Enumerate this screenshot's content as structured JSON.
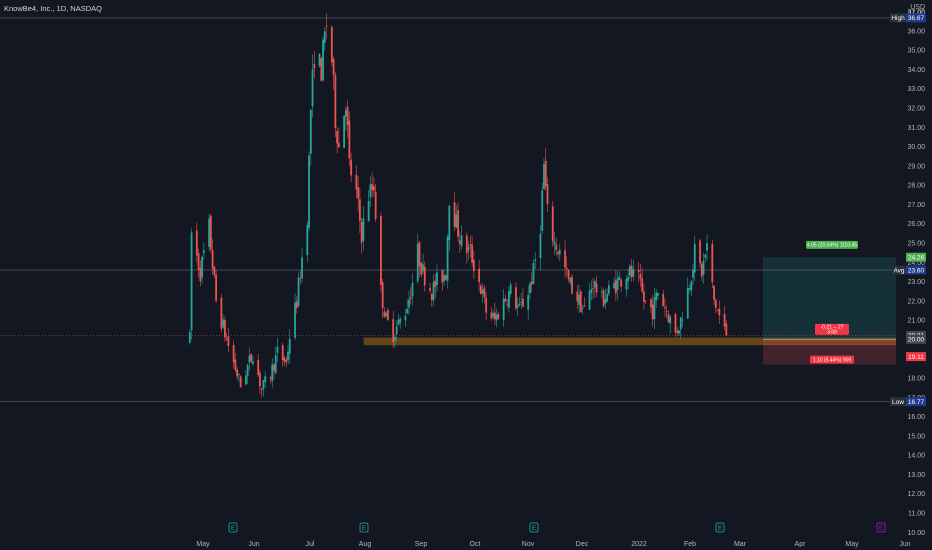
{
  "header": {
    "symbol": "KnowBe4, Inc., 1D, NASDAQ"
  },
  "axis": {
    "currency": "USD",
    "currency_sub": "37.00"
  },
  "price_tags": {
    "high": {
      "label": "High",
      "value": "36.67"
    },
    "avg": {
      "label": "Avg",
      "value": "23.60"
    },
    "low": {
      "label": "Low",
      "value": "16.77"
    },
    "target": "24.26",
    "last": "20.21",
    "entry": "20.00",
    "stop": "19.11"
  },
  "position": {
    "profit_label": "4.05 (20.04%) 1110.45",
    "risk_label": "1.10 (5.44%) 909",
    "entry_label_1": "-0.21 -- 27",
    "entry_label_2": "3.68"
  },
  "events": {
    "earnings_badge": "E",
    "dividend_badge": "E"
  },
  "chart_data": {
    "type": "candlestick",
    "title": "KnowBe4, Inc., 1D, NASDAQ",
    "y_ticks": [
      10,
      11,
      12,
      13,
      14,
      15,
      16,
      17,
      18,
      19,
      20,
      21,
      22,
      23,
      24,
      25,
      26,
      27,
      28,
      29,
      30,
      31,
      32,
      33,
      34,
      35,
      36,
      37
    ],
    "ylim": [
      9.6,
      37.6
    ],
    "x_ticks": [
      "May",
      "Jun",
      "Jul",
      "Aug",
      "Sep",
      "Oct",
      "Nov",
      "Dec",
      "2022",
      "Feb",
      "Mar",
      "Apr",
      "May",
      "Jun"
    ],
    "price_path": [
      [
        "2021-04-22",
        20.0
      ],
      [
        "2021-04-23",
        25.5
      ],
      [
        "2021-04-28",
        23.5
      ],
      [
        "2021-05-03",
        25.8
      ],
      [
        "2021-05-07",
        22.0
      ],
      [
        "2021-05-12",
        20.3
      ],
      [
        "2021-05-17",
        18.8
      ],
      [
        "2021-05-21",
        17.6
      ],
      [
        "2021-05-25",
        18.6
      ],
      [
        "2021-05-28",
        19.3
      ],
      [
        "2021-06-02",
        17.4
      ],
      [
        "2021-06-07",
        18.2
      ],
      [
        "2021-06-11",
        19.3
      ],
      [
        "2021-06-16",
        18.8
      ],
      [
        "2021-06-18",
        20.2
      ],
      [
        "2021-06-22",
        22.0
      ],
      [
        "2021-06-24",
        23.5
      ],
      [
        "2021-06-28",
        26.5
      ],
      [
        "2021-06-30",
        32.0
      ],
      [
        "2021-07-02",
        34.8
      ],
      [
        "2021-07-06",
        34.0
      ],
      [
        "2021-07-08",
        35.7
      ],
      [
        "2021-07-09",
        36.4
      ],
      [
        "2021-07-12",
        34.5
      ],
      [
        "2021-07-14",
        31.5
      ],
      [
        "2021-07-16",
        30.0
      ],
      [
        "2021-07-20",
        32.5
      ],
      [
        "2021-07-22",
        29.0
      ],
      [
        "2021-07-26",
        27.5
      ],
      [
        "2021-07-29",
        25.5
      ],
      [
        "2021-08-02",
        27.5
      ],
      [
        "2021-08-05",
        28.0
      ],
      [
        "2021-08-09",
        22.5
      ],
      [
        "2021-08-12",
        21.0
      ],
      [
        "2021-08-16",
        20.3
      ],
      [
        "2021-08-19",
        20.8
      ],
      [
        "2021-08-23",
        21.5
      ],
      [
        "2021-08-26",
        22.5
      ],
      [
        "2021-08-30",
        24.5
      ],
      [
        "2021-09-02",
        23.5
      ],
      [
        "2021-09-07",
        22.5
      ],
      [
        "2021-09-10",
        23.0
      ],
      [
        "2021-09-15",
        23.5
      ],
      [
        "2021-09-17",
        27.5
      ],
      [
        "2021-09-21",
        26.0
      ],
      [
        "2021-09-24",
        25.0
      ],
      [
        "2021-09-29",
        24.5
      ],
      [
        "2021-10-04",
        23.0
      ],
      [
        "2021-10-08",
        21.5
      ],
      [
        "2021-10-13",
        21.0
      ],
      [
        "2021-10-18",
        22.0
      ],
      [
        "2021-10-22",
        22.5
      ],
      [
        "2021-10-27",
        21.5
      ],
      [
        "2021-11-01",
        22.5
      ],
      [
        "2021-11-04",
        23.5
      ],
      [
        "2021-11-08",
        26.0
      ],
      [
        "2021-11-10",
        29.0
      ],
      [
        "2021-11-12",
        26.5
      ],
      [
        "2021-11-16",
        25.0
      ],
      [
        "2021-11-19",
        24.5
      ],
      [
        "2021-11-24",
        23.0
      ],
      [
        "2021-11-30",
        22.0
      ],
      [
        "2021-12-03",
        21.5
      ],
      [
        "2021-12-08",
        23.0
      ],
      [
        "2021-12-13",
        22.0
      ],
      [
        "2021-12-17",
        22.5
      ],
      [
        "2021-12-22",
        23.0
      ],
      [
        "2021-12-28",
        23.5
      ],
      [
        "2022-01-03",
        23.0
      ],
      [
        "2022-01-06",
        22.0
      ],
      [
        "2022-01-11",
        21.5
      ],
      [
        "2022-01-14",
        22.5
      ],
      [
        "2022-01-19",
        21.5
      ],
      [
        "2022-01-24",
        20.3
      ],
      [
        "2022-01-27",
        21.0
      ],
      [
        "2022-02-01",
        23.0
      ],
      [
        "2022-02-04",
        24.5
      ],
      [
        "2022-02-08",
        23.5
      ],
      [
        "2022-02-11",
        24.8
      ],
      [
        "2022-02-15",
        22.0
      ],
      [
        "2022-02-18",
        21.2
      ],
      [
        "2022-02-22",
        20.2
      ]
    ],
    "reference_lines": {
      "high": 36.67,
      "avg": 23.6,
      "low": 16.77,
      "target": 24.26,
      "last": 20.21,
      "entry": 20.0,
      "stop": 19.11
    },
    "support_zone": [
      19.7,
      20.1
    ],
    "grid": false,
    "legend": "none"
  }
}
